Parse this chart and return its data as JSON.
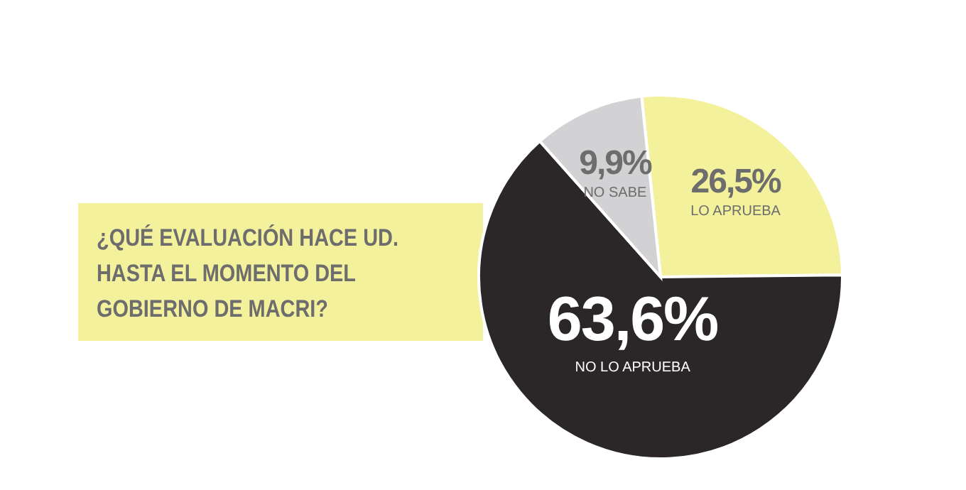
{
  "chart_data": {
    "type": "pie",
    "title": "¿QUÉ EVALUACIÓN HACE UD. HASTA EL MOMENTO DEL GOBIERNO DE MACRI?",
    "categories": [
      "LO APRUEBA",
      "NO LO APRUEBA",
      "NO SABE"
    ],
    "values": [
      26.5,
      63.6,
      9.9
    ],
    "colors": [
      "#f4f19c",
      "#2b2627",
      "#d2d2d4"
    ],
    "value_labels": [
      "26,5%",
      "63,6%",
      "9,9%"
    ]
  }
}
